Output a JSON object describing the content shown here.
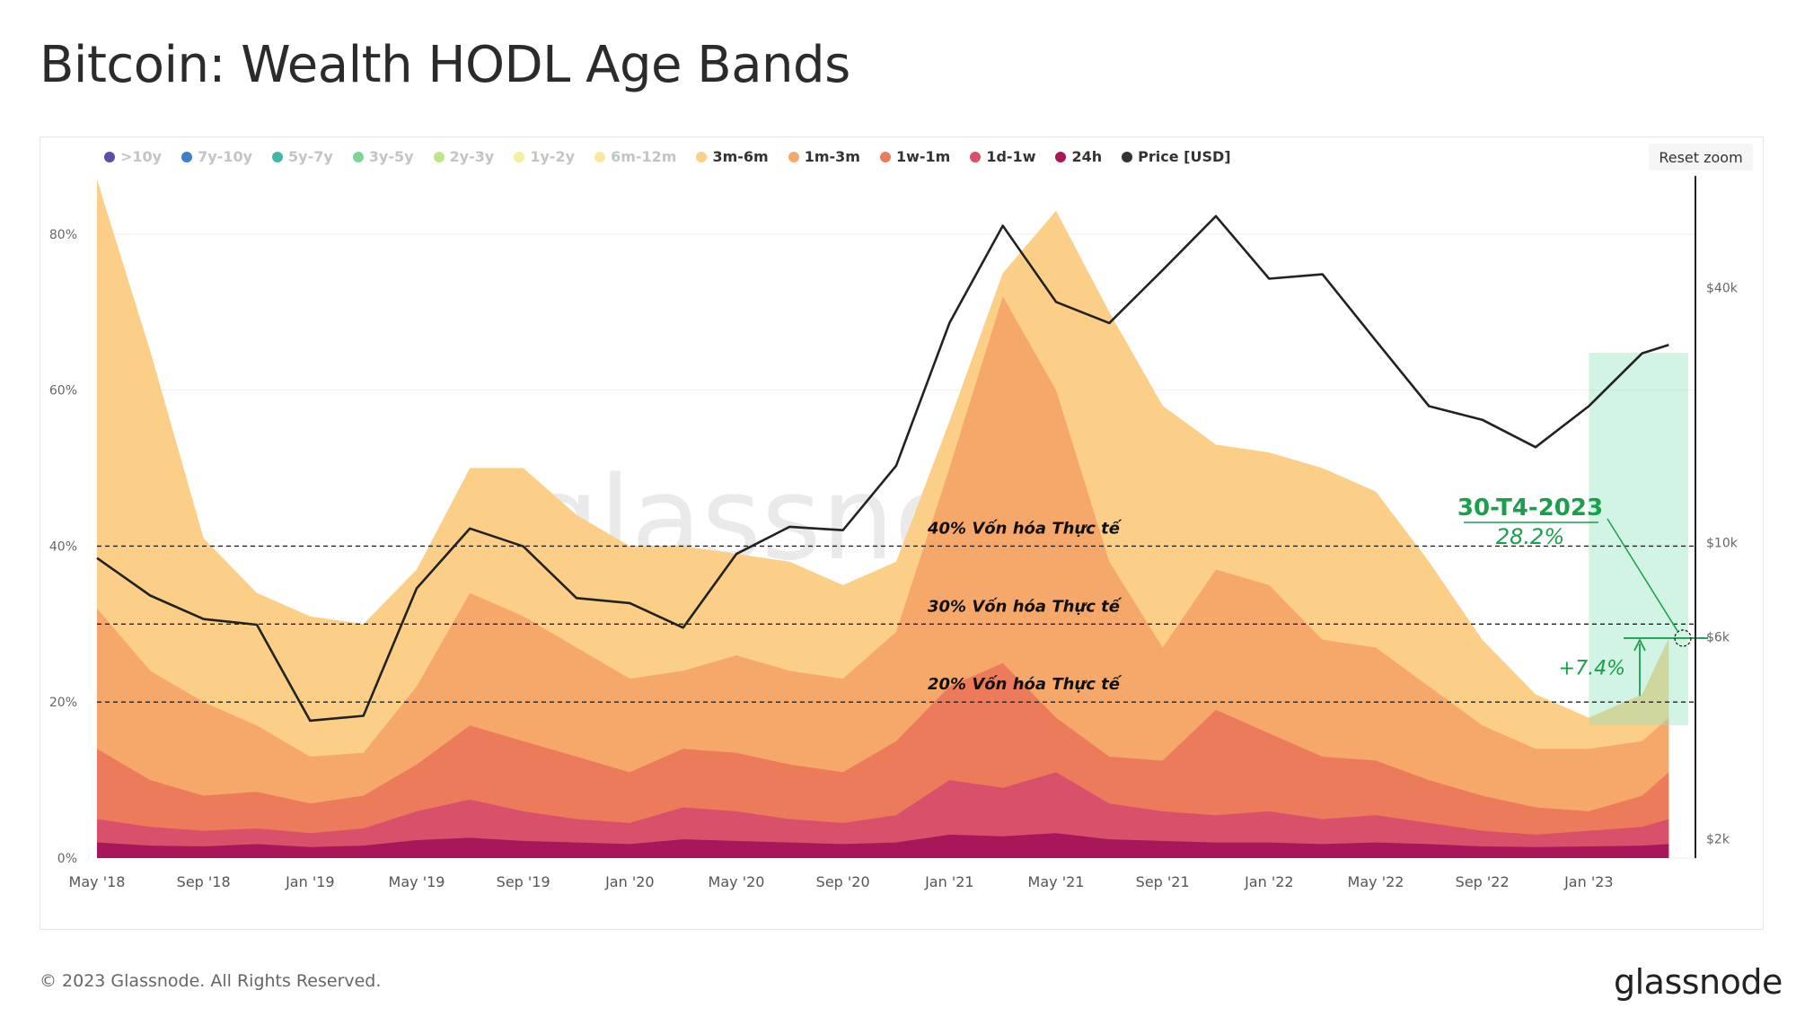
{
  "title": "Bitcoin: Wealth HODL Age Bands",
  "reset_zoom_label": "Reset zoom",
  "footer": "© 2023 Glassnode. All Rights Reserved.",
  "logo_text": "glassnode",
  "watermark": "glassnode",
  "legend": [
    {
      "label": ">10y",
      "color": "#5b4da8",
      "active": false
    },
    {
      "label": "7y-10y",
      "color": "#3b7fc4",
      "active": false
    },
    {
      "label": "5y-7y",
      "color": "#3fb8a8",
      "active": false
    },
    {
      "label": "3y-5y",
      "color": "#7fd49a",
      "active": false
    },
    {
      "label": "2y-3y",
      "color": "#bde58a",
      "active": false
    },
    {
      "label": "1y-2y",
      "color": "#f4f0a0",
      "active": false
    },
    {
      "label": "6m-12m",
      "color": "#fbe7a1",
      "active": false
    },
    {
      "label": "3m-6m",
      "color": "#fbcf87",
      "active": true
    },
    {
      "label": "1m-3m",
      "color": "#f6a86a",
      "active": true
    },
    {
      "label": "1w-1m",
      "color": "#ec7b5b",
      "active": true
    },
    {
      "label": "1d-1w",
      "color": "#d9506a",
      "active": true
    },
    {
      "label": "24h",
      "color": "#a8175a",
      "active": true
    },
    {
      "label": "Price [USD]",
      "color": "#333333",
      "active": true
    }
  ],
  "chart_data": {
    "type": "area",
    "stacked": true,
    "x": [
      "2018-05",
      "2018-07",
      "2018-09",
      "2018-11",
      "2019-01",
      "2019-03",
      "2019-05",
      "2019-07",
      "2019-09",
      "2019-11",
      "2020-01",
      "2020-03",
      "2020-05",
      "2020-07",
      "2020-09",
      "2020-11",
      "2021-01",
      "2021-03",
      "2021-05",
      "2021-07",
      "2021-09",
      "2021-11",
      "2022-01",
      "2022-03",
      "2022-05",
      "2022-07",
      "2022-09",
      "2022-11",
      "2023-01",
      "2023-03",
      "2023-04"
    ],
    "x_tick_labels": [
      "May '18",
      "Sep '18",
      "Jan '19",
      "May '19",
      "Sep '19",
      "Jan '20",
      "May '20",
      "Sep '20",
      "Jan '21",
      "May '21",
      "Sep '21",
      "Jan '22",
      "May '22",
      "Sep '22",
      "Jan '23"
    ],
    "y_left_tick_labels": [
      "0%",
      "20%",
      "40%",
      "60%",
      "80%"
    ],
    "y_left_range": [
      0,
      87
    ],
    "y_right_tick_labels": [
      "$2k",
      "$6k",
      "$10k",
      "$40k"
    ],
    "y_right_tick_values": [
      2000,
      6000,
      10000,
      40000
    ],
    "y_right_scale": "log",
    "series": [
      {
        "name": "24h",
        "color": "#a8175a",
        "values": [
          2.0,
          1.6,
          1.5,
          1.8,
          1.4,
          1.6,
          2.3,
          2.6,
          2.2,
          2.0,
          1.8,
          2.4,
          2.2,
          2.0,
          1.8,
          2.0,
          3.0,
          2.8,
          3.2,
          2.4,
          2.2,
          2.0,
          2.0,
          1.8,
          2.0,
          1.8,
          1.5,
          1.4,
          1.5,
          1.6,
          1.8
        ]
      },
      {
        "name": "1d-1w",
        "color": "#d9506a",
        "values": [
          5.0,
          4.0,
          3.5,
          3.8,
          3.2,
          3.8,
          6.0,
          7.5,
          6.0,
          5.0,
          4.5,
          6.5,
          6.0,
          5.0,
          4.5,
          5.5,
          10.0,
          9.0,
          11.0,
          7.0,
          6.0,
          5.5,
          6.0,
          5.0,
          5.5,
          4.5,
          3.5,
          3.0,
          3.5,
          4.0,
          5.0
        ]
      },
      {
        "name": "1w-1m",
        "color": "#ec7b5b",
        "values": [
          14.0,
          10.0,
          8.0,
          8.5,
          7.0,
          8.0,
          12.0,
          17.0,
          15.0,
          13.0,
          11.0,
          14.0,
          13.5,
          12.0,
          11.0,
          15.0,
          22.0,
          25.0,
          18.0,
          13.0,
          12.5,
          19.0,
          16.0,
          13.0,
          12.5,
          10.0,
          8.0,
          6.5,
          6.0,
          8.0,
          11.0
        ]
      },
      {
        "name": "1m-3m",
        "color": "#f6a86a",
        "values": [
          32.0,
          24.0,
          20.0,
          17.0,
          13.0,
          13.5,
          22.0,
          34.0,
          31.0,
          27.0,
          23.0,
          24.0,
          26.0,
          24.0,
          23.0,
          29.0,
          50.0,
          72.0,
          60.0,
          38.0,
          27.0,
          37.0,
          35.0,
          28.0,
          27.0,
          22.0,
          17.0,
          14.0,
          14.0,
          15.0,
          18.0
        ]
      },
      {
        "name": "3m-6m",
        "color": "#fbcf87",
        "values": [
          87.0,
          65.0,
          41.0,
          34.0,
          31.0,
          30.0,
          37.0,
          50.0,
          50.0,
          44.0,
          40.0,
          40.0,
          39.0,
          38.0,
          35.0,
          38.0,
          56.0,
          75.0,
          83.0,
          70.0,
          58.0,
          53.0,
          52.0,
          50.0,
          47.0,
          38.0,
          28.0,
          21.0,
          18.0,
          21.0,
          28.2
        ]
      }
    ],
    "price_series": {
      "name": "Price [USD]",
      "color": "#222222",
      "values": [
        9200,
        7500,
        6600,
        6400,
        3800,
        3900,
        7800,
        10800,
        9800,
        7400,
        7200,
        6300,
        9400,
        10900,
        10700,
        15200,
        33000,
        56000,
        37000,
        33000,
        44000,
        59000,
        42000,
        43000,
        30000,
        21000,
        19500,
        16800,
        21000,
        28000,
        29300
      ]
    },
    "reference_lines": [
      {
        "label": "40% Vốn hóa Thực tế",
        "value": 40
      },
      {
        "label": "30% Vốn hóa Thực tế",
        "value": 30
      },
      {
        "label": "20% Vốn hóa Thực tế",
        "value": 20
      }
    ],
    "annotation": {
      "date_label": "30-T4-2023",
      "value_label": "28.2%",
      "value": 28.2,
      "change_label": "+7.4%",
      "change_base": 20.8,
      "highlight_from": "2023-01"
    },
    "grid": true,
    "legend_position": "top-left"
  }
}
